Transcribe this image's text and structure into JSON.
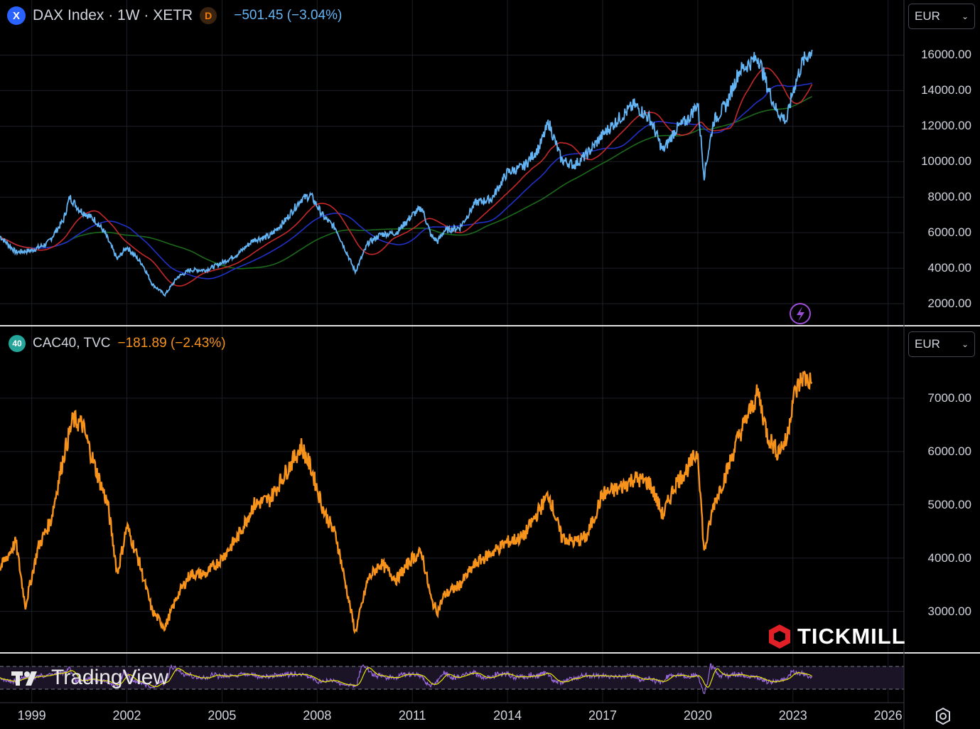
{
  "dax_pane": {
    "symbol_badge": "X",
    "title": "DAX Index · 1W · XETR",
    "source_badge": "D",
    "change": "−501.45 (−3.04%)",
    "currency": "EUR",
    "price_axis": [
      "16000.00",
      "14000.00",
      "12000.00",
      "10000.00",
      "8000.00",
      "6000.00",
      "4000.00",
      "2000.00"
    ]
  },
  "cac_pane": {
    "symbol_badge": "40",
    "title": "CAC40, TVC",
    "change": "−181.89 (−2.43%)",
    "currency": "EUR",
    "price_axis": [
      "7000.00",
      "6000.00",
      "5000.00",
      "4000.00",
      "3000.00"
    ]
  },
  "time_axis": [
    "1999",
    "2002",
    "2005",
    "2008",
    "2011",
    "2014",
    "2017",
    "2020",
    "2023",
    "2026"
  ],
  "branding": {
    "tickmill": "TICKMILL",
    "tradingview": "TradingView"
  },
  "colors": {
    "dax": "#64b5f6",
    "ma_fast": "#c62828",
    "ma_mid": "#2031c8",
    "ma_slow": "#1b6b1b",
    "cac": "#f7931a",
    "osc_line": "#9c6ade",
    "osc_signal": "#e6e600"
  },
  "chart_data": [
    {
      "type": "line",
      "name": "DAX Index",
      "x": [
        1998.0,
        1998.5,
        1999.0,
        1999.5,
        2000.0,
        2000.2,
        2000.5,
        2001.0,
        2001.3,
        2001.7,
        2002.0,
        2002.5,
        2002.8,
        2003.2,
        2003.6,
        2004.0,
        2004.5,
        2005.0,
        2005.5,
        2006.0,
        2006.5,
        2007.0,
        2007.5,
        2007.8,
        2008.2,
        2008.6,
        2009.0,
        2009.2,
        2009.6,
        2010.0,
        2010.5,
        2011.0,
        2011.3,
        2011.6,
        2011.8,
        2012.0,
        2012.5,
        2013.0,
        2013.5,
        2014.0,
        2014.5,
        2015.0,
        2015.3,
        2015.7,
        2016.1,
        2016.5,
        2017.0,
        2017.5,
        2018.0,
        2018.5,
        2018.9,
        2019.3,
        2019.7,
        2020.0,
        2020.2,
        2020.5,
        2020.9,
        2021.3,
        2021.9,
        2022.2,
        2022.5,
        2022.8,
        2023.0,
        2023.3,
        2023.6
      ],
      "y": [
        5800,
        4900,
        5000,
        5400,
        6700,
        8000,
        7300,
        6700,
        6000,
        4500,
        5200,
        4200,
        3100,
        2500,
        3500,
        3900,
        3900,
        4300,
        4800,
        5600,
        5800,
        6700,
        7900,
        8100,
        6900,
        6200,
        4600,
        3800,
        5400,
        5900,
        6000,
        7000,
        7400,
        5800,
        5500,
        6100,
        6300,
        7700,
        7900,
        9400,
        9700,
        10800,
        12200,
        10100,
        9800,
        10400,
        11500,
        12400,
        13200,
        12400,
        10600,
        11800,
        12400,
        13300,
        9200,
        12300,
        13200,
        15100,
        15900,
        14200,
        12800,
        12300,
        14000,
        15600,
        16300
      ],
      "series": [
        {
          "name": "DAX Index",
          "color": "#64b5f6"
        },
        {
          "name": "",
          "color": "#c62828"
        },
        {
          "name": "",
          "color": "#2031c8"
        },
        {
          "name": "",
          "color": "#1b6b1b"
        }
      ],
      "ylim": [
        1000,
        17500
      ],
      "xlim": [
        1998.0,
        2026.5
      ],
      "grid": true
    },
    {
      "type": "line",
      "name": "CAC40",
      "x": [
        1998.0,
        1998.5,
        1998.8,
        1999.2,
        1999.6,
        2000.0,
        2000.3,
        2000.6,
        2001.0,
        2001.4,
        2001.7,
        2002.0,
        2002.4,
        2002.8,
        2003.2,
        2003.6,
        2004.0,
        2004.5,
        2005.0,
        2005.5,
        2006.0,
        2006.5,
        2007.0,
        2007.5,
        2007.8,
        2008.2,
        2008.6,
        2009.0,
        2009.2,
        2009.6,
        2010.0,
        2010.5,
        2011.0,
        2011.3,
        2011.6,
        2011.8,
        2012.0,
        2012.5,
        2013.0,
        2013.5,
        2014.0,
        2014.5,
        2015.0,
        2015.3,
        2015.7,
        2016.1,
        2016.5,
        2017.0,
        2017.5,
        2018.0,
        2018.5,
        2018.9,
        2019.3,
        2019.7,
        2020.0,
        2020.2,
        2020.5,
        2020.9,
        2021.3,
        2021.9,
        2022.2,
        2022.5,
        2022.8,
        2023.0,
        2023.3,
        2023.6
      ],
      "y": [
        3800,
        4300,
        3100,
        4200,
        4700,
        5900,
        6600,
        6500,
        5700,
        5000,
        3700,
        4600,
        3900,
        3000,
        2700,
        3300,
        3700,
        3700,
        4000,
        4400,
        5000,
        5100,
        5600,
        6100,
        5700,
        4900,
        4400,
        3200,
        2600,
        3600,
        3900,
        3600,
        4000,
        4100,
        3200,
        3000,
        3300,
        3500,
        3900,
        4100,
        4300,
        4400,
        4900,
        5200,
        4400,
        4300,
        4400,
        5200,
        5300,
        5500,
        5400,
        4800,
        5400,
        5700,
        6000,
        4100,
        5000,
        5600,
        6300,
        7100,
        6300,
        6000,
        6200,
        7000,
        7400,
        7300
      ],
      "series": [
        {
          "name": "CAC40",
          "color": "#f7931a"
        }
      ],
      "ylim": [
        2300,
        7800
      ],
      "xlim": [
        1998.0,
        2026.5
      ],
      "grid": true
    }
  ]
}
